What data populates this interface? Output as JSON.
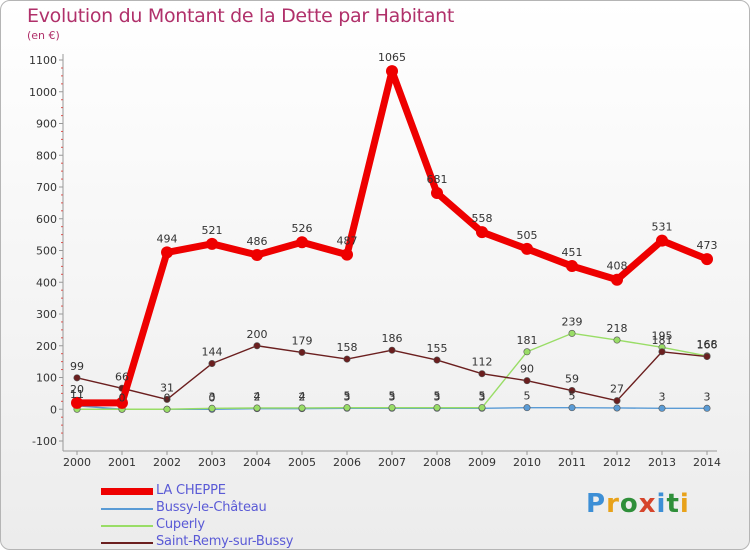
{
  "title": "Evolution du Montant de la Dette par Habitant",
  "subtitle": "(en €)",
  "logo_text": "Proxiti",
  "chart_data": {
    "type": "line",
    "title": "Evolution du Montant de la Dette par Habitant",
    "subtitle": "(en €)",
    "x": [
      "2000",
      "2001",
      "2002",
      "2003",
      "2004",
      "2005",
      "2006",
      "2007",
      "2008",
      "2009",
      "2010",
      "2011",
      "2012",
      "2013",
      "2014"
    ],
    "ylim": [
      -100,
      1100
    ],
    "yticks": [
      "-100",
      "0",
      "100",
      "200",
      "300",
      "400",
      "500",
      "600",
      "700",
      "800",
      "900",
      "1000",
      "1100"
    ],
    "grid": false,
    "legend_position": "bottom-left",
    "series": [
      {
        "name": "LA CHEPPE",
        "color": "#ee0000",
        "values": [
          20,
          20,
          494,
          521,
          486,
          526,
          487,
          1065,
          681,
          558,
          505,
          451,
          408,
          531,
          473
        ],
        "labels": [
          "20",
          "",
          "494",
          "521",
          "486",
          "526",
          "487",
          "1065",
          "681",
          "558",
          "505",
          "451",
          "408",
          "531",
          "473"
        ]
      },
      {
        "name": "Bussy-le-Château",
        "color": "#5a9bd5",
        "values": [
          11,
          0,
          0,
          0,
          2,
          2,
          3,
          3,
          3,
          3,
          5,
          5,
          4,
          3,
          3
        ],
        "labels": [
          "11",
          "",
          "0",
          "0",
          "2",
          "2",
          "3",
          "3",
          "3",
          "3",
          "5",
          "5",
          "",
          "3",
          "3"
        ]
      },
      {
        "name": "Cuperly",
        "color": "#99dd66",
        "values": [
          0,
          0,
          0,
          3,
          4,
          4,
          5,
          5,
          5,
          5,
          181,
          239,
          218,
          195,
          168
        ],
        "labels": [
          "",
          "0",
          "",
          "3",
          "4",
          "4",
          "5",
          "5",
          "5",
          "5",
          "181",
          "239",
          "218",
          "195",
          "168"
        ]
      },
      {
        "name": "Saint-Remy-sur-Bussy",
        "color": "#6b1f1f",
        "values": [
          99,
          66,
          31,
          144,
          200,
          179,
          158,
          186,
          155,
          112,
          90,
          59,
          27,
          181,
          166
        ],
        "labels": [
          "99",
          "66",
          "31",
          "144",
          "200",
          "179",
          "158",
          "186",
          "155",
          "112",
          "90",
          "59",
          "27",
          "181",
          "166"
        ]
      }
    ]
  }
}
